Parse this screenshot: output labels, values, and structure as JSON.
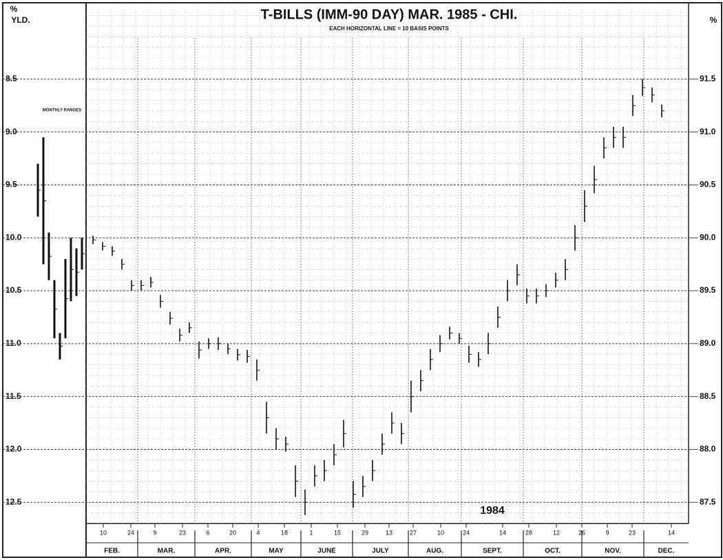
{
  "chart_data": {
    "type": "range-bar",
    "title": "T-BILLS (IMM-90 DAY) MAR. 1985 - CHI.",
    "subtitle": "EACH HORIZONTAL LINE = 10 BASIS POINTS",
    "y_unit": "%",
    "y_label": "YLD.",
    "y2_unit": "%",
    "monthly_label": "MONTHLY RANGES",
    "year_label": "1984",
    "ylim": [
      7.85,
      12.7
    ],
    "y_inverted": true,
    "yticks": [
      8.5,
      {
        "value": 9,
        "label": "9.0"
      },
      9.5,
      {
        "value": 10,
        "label": "10.0"
      },
      10.5,
      {
        "value": 11,
        "label": "11.0"
      },
      11.5,
      {
        "value": 12,
        "label": "12.0"
      },
      12.5
    ],
    "y2lim": [
      92.15,
      87.3
    ],
    "y2ticks": [
      91.5,
      {
        "value": 91,
        "label": "91.0"
      },
      90.5,
      {
        "value": 90,
        "label": "90.0"
      },
      89.5,
      {
        "value": 89,
        "label": "89.0"
      },
      88.5,
      {
        "value": 88,
        "label": "88.0"
      },
      87.5
    ],
    "months": [
      "FEB.",
      "MAR.",
      "APR.",
      "MAY",
      "JUNE",
      "JULY",
      "AUG.",
      "SEPT.",
      "OCT.",
      "NOV.",
      "DEC."
    ],
    "days": [
      "10",
      "24",
      "9",
      "23",
      "6",
      "20",
      "4",
      "18",
      "1",
      "15",
      "29",
      "13",
      "27",
      "10",
      "24",
      "14",
      "28",
      "12",
      "26",
      "9",
      "23",
      "14"
    ],
    "color": "#111111",
    "grid": true,
    "monthly_ranges": [
      [
        9.3,
        9.8
      ],
      [
        9.05,
        10.25
      ],
      [
        9.95,
        10.4
      ],
      [
        10.4,
        10.95
      ],
      [
        10.9,
        11.15
      ],
      [
        10.2,
        10.95
      ],
      [
        10.0,
        10.6
      ],
      [
        10.1,
        10.55
      ],
      [
        10.0,
        10.3
      ]
    ],
    "ranges": [
      [
        9.98,
        10.06
      ],
      [
        10.04,
        10.12
      ],
      [
        10.08,
        10.17
      ],
      [
        10.2,
        10.3
      ],
      [
        10.4,
        10.5
      ],
      [
        10.4,
        10.5
      ],
      [
        10.37,
        10.47
      ],
      [
        10.54,
        10.66
      ],
      [
        10.7,
        10.82
      ],
      [
        10.86,
        10.98
      ],
      [
        10.8,
        10.9
      ],
      [
        10.98,
        11.14
      ],
      [
        10.95,
        11.05
      ],
      [
        10.94,
        11.06
      ],
      [
        11.0,
        11.1
      ],
      [
        11.05,
        11.16
      ],
      [
        11.06,
        11.18
      ],
      [
        11.15,
        11.35
      ],
      [
        11.55,
        11.85
      ],
      [
        11.8,
        12.0
      ],
      [
        11.88,
        12.02
      ],
      [
        12.15,
        12.45
      ],
      [
        12.38,
        12.62
      ],
      [
        12.15,
        12.35
      ],
      [
        12.1,
        12.3
      ],
      [
        11.95,
        12.15
      ],
      [
        11.72,
        11.98
      ],
      [
        12.3,
        12.55
      ],
      [
        12.25,
        12.45
      ],
      [
        12.1,
        12.3
      ],
      [
        11.85,
        12.05
      ],
      [
        11.65,
        11.85
      ],
      [
        11.75,
        11.95
      ],
      [
        11.35,
        11.65
      ],
      [
        11.25,
        11.45
      ],
      [
        11.05,
        11.25
      ],
      [
        10.92,
        11.08
      ],
      [
        10.84,
        10.96
      ],
      [
        10.9,
        11.0
      ],
      [
        11.02,
        11.18
      ],
      [
        11.08,
        11.22
      ],
      [
        10.9,
        11.1
      ],
      [
        10.65,
        10.85
      ],
      [
        10.4,
        10.6
      ],
      [
        10.25,
        10.45
      ],
      [
        10.48,
        10.62
      ],
      [
        10.48,
        10.62
      ],
      [
        10.44,
        10.56
      ],
      [
        10.33,
        10.47
      ],
      [
        10.2,
        10.4
      ],
      [
        9.88,
        10.12
      ],
      [
        9.55,
        9.85
      ],
      [
        9.32,
        9.58
      ],
      [
        9.05,
        9.25
      ],
      [
        8.95,
        9.15
      ],
      [
        8.95,
        9.15
      ],
      [
        8.65,
        8.85
      ],
      [
        8.5,
        8.66
      ],
      [
        8.58,
        8.72
      ],
      [
        8.74,
        8.86
      ]
    ]
  }
}
